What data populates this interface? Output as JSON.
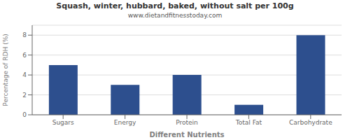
{
  "chart_data": {
    "type": "bar",
    "title": "Squash, winter, hubbard, baked, without salt per 100g",
    "subtitle": "www.dietandfitnesstoday.com",
    "xlabel": "Different Nutrients",
    "ylabel": "Percentage of RDH (%)",
    "categories": [
      "Sugars",
      "Energy",
      "Protein",
      "Total Fat",
      "Carbohydrate"
    ],
    "values": [
      5.0,
      3.0,
      4.0,
      1.0,
      8.0
    ],
    "color": "#2d4f8e",
    "ylim": [
      0,
      9
    ],
    "yticks": [
      0,
      2,
      4,
      6,
      8
    ],
    "grid": true
  }
}
